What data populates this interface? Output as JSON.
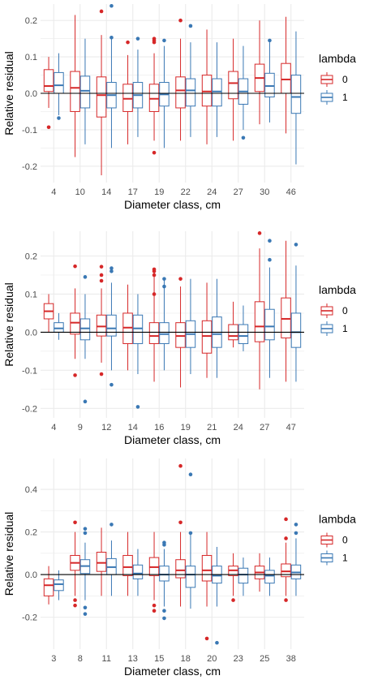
{
  "colors": {
    "lambda_0": "#d62728",
    "lambda_1": "#3a78b4",
    "grid": "#ebebeb",
    "zero_line": "#000000"
  },
  "legend": {
    "title": "lambda",
    "labels": [
      "0",
      "1"
    ]
  },
  "chart_data": [
    {
      "type": "box",
      "xlabel": "Diameter class, cm",
      "ylabel": "Relative residual",
      "ylim": [
        -0.245,
        0.245
      ],
      "yticks": [
        -0.2,
        -0.1,
        0.0,
        0.1,
        0.2
      ],
      "ytick_labels": [
        "-0.2",
        "-0.1",
        "0.0",
        "0.1",
        "0.2"
      ],
      "categories": [
        "4",
        "10",
        "14",
        "17",
        "19",
        "22",
        "24",
        "27",
        "30",
        "46"
      ],
      "series": [
        {
          "lambda": "0",
          "boxes": [
            {
              "whislo": -0.04,
              "q1": 0.005,
              "med": 0.02,
              "q3": 0.065,
              "whishi": 0.1,
              "fliers": [
                -0.093
              ]
            },
            {
              "whislo": -0.175,
              "q1": -0.05,
              "med": 0.015,
              "q3": 0.06,
              "whishi": 0.215,
              "fliers": []
            },
            {
              "whislo": -0.225,
              "q1": -0.065,
              "med": -0.005,
              "q3": 0.045,
              "whishi": 0.16,
              "fliers": [
                0.225
              ]
            },
            {
              "whislo": -0.14,
              "q1": -0.05,
              "med": -0.015,
              "q3": 0.025,
              "whishi": 0.105,
              "fliers": [
                0.14
              ]
            },
            {
              "whislo": -0.13,
              "q1": -0.05,
              "med": -0.015,
              "q3": 0.025,
              "whishi": 0.11,
              "fliers": [
                -0.163,
                0.14,
                0.145,
                0.15
              ]
            },
            {
              "whislo": -0.13,
              "q1": -0.04,
              "med": 0.008,
              "q3": 0.045,
              "whishi": 0.15,
              "fliers": [
                0.2
              ]
            },
            {
              "whislo": -0.14,
              "q1": -0.035,
              "med": 0.005,
              "q3": 0.05,
              "whishi": 0.175,
              "fliers": []
            },
            {
              "whislo": -0.13,
              "q1": -0.015,
              "med": 0.028,
              "q3": 0.06,
              "whishi": 0.15,
              "fliers": []
            },
            {
              "whislo": -0.085,
              "q1": 0.005,
              "med": 0.042,
              "q3": 0.08,
              "whishi": 0.2,
              "fliers": []
            },
            {
              "whislo": -0.11,
              "q1": 0.0,
              "med": 0.038,
              "q3": 0.082,
              "whishi": 0.21,
              "fliers": []
            }
          ]
        },
        {
          "lambda": "1",
          "boxes": [
            {
              "whislo": -0.06,
              "q1": 0.0,
              "med": 0.022,
              "q3": 0.057,
              "whishi": 0.11,
              "fliers": [
                -0.068
              ]
            },
            {
              "whislo": -0.14,
              "q1": -0.04,
              "med": 0.007,
              "q3": 0.047,
              "whishi": 0.15,
              "fliers": []
            },
            {
              "whislo": -0.15,
              "q1": -0.04,
              "med": -0.005,
              "q3": 0.03,
              "whishi": 0.15,
              "fliers": [
                0.153,
                0.24
              ]
            },
            {
              "whislo": -0.12,
              "q1": -0.04,
              "med": -0.005,
              "q3": 0.03,
              "whishi": 0.12,
              "fliers": [
                0.15
              ]
            },
            {
              "whislo": -0.15,
              "q1": -0.035,
              "med": -0.003,
              "q3": 0.03,
              "whishi": 0.13,
              "fliers": [
                0.145
              ]
            },
            {
              "whislo": -0.12,
              "q1": -0.035,
              "med": 0.008,
              "q3": 0.04,
              "whishi": 0.14,
              "fliers": [
                0.185
              ]
            },
            {
              "whislo": -0.12,
              "q1": -0.035,
              "med": 0.005,
              "q3": 0.04,
              "whishi": 0.14,
              "fliers": []
            },
            {
              "whislo": -0.1,
              "q1": -0.03,
              "med": 0.005,
              "q3": 0.04,
              "whishi": 0.13,
              "fliers": [
                -0.122
              ]
            },
            {
              "whislo": -0.08,
              "q1": -0.01,
              "med": 0.02,
              "q3": 0.055,
              "whishi": 0.14,
              "fliers": [
                0.145
              ]
            },
            {
              "whislo": -0.195,
              "q1": -0.055,
              "med": -0.01,
              "q3": 0.05,
              "whishi": 0.17,
              "fliers": []
            }
          ]
        }
      ]
    },
    {
      "type": "box",
      "xlabel": "Diameter class, cm",
      "ylabel": "Relative residual",
      "ylim": [
        -0.225,
        0.265
      ],
      "yticks": [
        -0.2,
        -0.1,
        0.0,
        0.1,
        0.2
      ],
      "ytick_labels": [
        "-0.2",
        "-0.1",
        "0.0",
        "0.1",
        "0.2"
      ],
      "categories": [
        "4",
        "9",
        "12",
        "14",
        "16",
        "19",
        "21",
        "24",
        "27",
        "47"
      ],
      "series": [
        {
          "lambda": "0",
          "boxes": [
            {
              "whislo": 0.0,
              "q1": 0.035,
              "med": 0.055,
              "q3": 0.075,
              "whishi": 0.1,
              "fliers": []
            },
            {
              "whislo": -0.07,
              "q1": -0.005,
              "med": 0.025,
              "q3": 0.05,
              "whishi": 0.115,
              "fliers": [
                -0.113,
                0.173
              ]
            },
            {
              "whislo": -0.08,
              "q1": -0.01,
              "med": 0.015,
              "q3": 0.045,
              "whishi": 0.115,
              "fliers": [
                -0.11,
                0.135,
                0.15,
                0.172
              ]
            },
            {
              "whislo": -0.1,
              "q1": -0.03,
              "med": 0.012,
              "q3": 0.05,
              "whishi": 0.125,
              "fliers": []
            },
            {
              "whislo": -0.13,
              "q1": -0.03,
              "med": -0.01,
              "q3": 0.025,
              "whishi": 0.16,
              "fliers": [
                0.1,
                0.15,
                0.16,
                0.165
              ]
            },
            {
              "whislo": -0.145,
              "q1": -0.04,
              "med": -0.01,
              "q3": 0.025,
              "whishi": 0.12,
              "fliers": [
                0.14
              ]
            },
            {
              "whislo": -0.12,
              "q1": -0.055,
              "med": -0.01,
              "q3": 0.03,
              "whishi": 0.13,
              "fliers": []
            },
            {
              "whislo": -0.04,
              "q1": -0.02,
              "med": -0.01,
              "q3": 0.02,
              "whishi": 0.08,
              "fliers": []
            },
            {
              "whislo": -0.15,
              "q1": -0.025,
              "med": 0.015,
              "q3": 0.08,
              "whishi": 0.22,
              "fliers": [
                0.26
              ]
            },
            {
              "whislo": -0.13,
              "q1": -0.015,
              "med": 0.035,
              "q3": 0.09,
              "whishi": 0.24,
              "fliers": []
            }
          ]
        },
        {
          "lambda": "1",
          "boxes": [
            {
              "whislo": -0.02,
              "q1": 0.0,
              "med": 0.01,
              "q3": 0.025,
              "whishi": 0.05,
              "fliers": []
            },
            {
              "whislo": -0.07,
              "q1": -0.02,
              "med": 0.01,
              "q3": 0.035,
              "whishi": 0.1,
              "fliers": [
                -0.182,
                0.145
              ]
            },
            {
              "whislo": -0.1,
              "q1": -0.01,
              "med": 0.01,
              "q3": 0.045,
              "whishi": 0.13,
              "fliers": [
                -0.138,
                0.16,
                0.168
              ]
            },
            {
              "whislo": -0.11,
              "q1": -0.03,
              "med": 0.01,
              "q3": 0.045,
              "whishi": 0.1,
              "fliers": [
                -0.196
              ]
            },
            {
              "whislo": -0.1,
              "q1": -0.03,
              "med": -0.005,
              "q3": 0.025,
              "whishi": 0.14,
              "fliers": [
                0.12,
                0.14
              ]
            },
            {
              "whislo": -0.11,
              "q1": -0.04,
              "med": -0.005,
              "q3": 0.03,
              "whishi": 0.14,
              "fliers": []
            },
            {
              "whislo": -0.12,
              "q1": -0.04,
              "med": -0.005,
              "q3": 0.04,
              "whishi": 0.14,
              "fliers": []
            },
            {
              "whislo": -0.05,
              "q1": -0.03,
              "med": -0.01,
              "q3": 0.02,
              "whishi": 0.07,
              "fliers": []
            },
            {
              "whislo": -0.12,
              "q1": -0.02,
              "med": 0.015,
              "q3": 0.06,
              "whishi": 0.17,
              "fliers": [
                0.19,
                0.24
              ]
            },
            {
              "whislo": -0.13,
              "q1": -0.04,
              "med": 0.0,
              "q3": 0.05,
              "whishi": 0.175,
              "fliers": [
                0.23
              ]
            }
          ]
        }
      ]
    },
    {
      "type": "box",
      "xlabel": "Diameter class, cm",
      "ylabel": "Relative residual",
      "ylim": [
        -0.35,
        0.545
      ],
      "yticks": [
        -0.2,
        0.0,
        0.2,
        0.4
      ],
      "ytick_labels": [
        "-0.2",
        "0.0",
        "0.2",
        "0.4"
      ],
      "categories": [
        "3",
        "8",
        "11",
        "13",
        "15",
        "18",
        "20",
        "23",
        "25",
        "38"
      ],
      "series": [
        {
          "lambda": "0",
          "boxes": [
            {
              "whislo": -0.14,
              "q1": -0.1,
              "med": -0.05,
              "q3": -0.02,
              "whishi": 0.04,
              "fliers": []
            },
            {
              "whislo": -0.1,
              "q1": 0.02,
              "med": 0.055,
              "q3": 0.09,
              "whishi": 0.2,
              "fliers": [
                -0.12,
                -0.145,
                0.245
              ]
            },
            {
              "whislo": -0.1,
              "q1": 0.015,
              "med": 0.055,
              "q3": 0.105,
              "whishi": 0.22,
              "fliers": []
            },
            {
              "whislo": -0.1,
              "q1": -0.005,
              "med": 0.035,
              "q3": 0.09,
              "whishi": 0.2,
              "fliers": []
            },
            {
              "whislo": -0.12,
              "q1": -0.005,
              "med": 0.035,
              "q3": 0.08,
              "whishi": 0.2,
              "fliers": [
                -0.145,
                -0.17
              ]
            },
            {
              "whislo": -0.15,
              "q1": -0.015,
              "med": 0.02,
              "q3": 0.07,
              "whishi": 0.2,
              "fliers": [
                0.245,
                0.51
              ]
            },
            {
              "whislo": -0.15,
              "q1": -0.03,
              "med": 0.02,
              "q3": 0.09,
              "whishi": 0.2,
              "fliers": [
                -0.3
              ]
            },
            {
              "whislo": -0.1,
              "q1": -0.005,
              "med": 0.02,
              "q3": 0.04,
              "whishi": 0.1,
              "fliers": [
                -0.12
              ]
            },
            {
              "whislo": -0.08,
              "q1": -0.02,
              "med": 0.01,
              "q3": 0.04,
              "whishi": 0.1,
              "fliers": []
            },
            {
              "whislo": -0.1,
              "q1": -0.01,
              "med": 0.015,
              "q3": 0.05,
              "whishi": 0.15,
              "fliers": [
                -0.12,
                0.17,
                0.26
              ]
            }
          ]
        },
        {
          "lambda": "1",
          "boxes": [
            {
              "whislo": -0.12,
              "q1": -0.075,
              "med": -0.045,
              "q3": -0.025,
              "whishi": 0.02,
              "fliers": []
            },
            {
              "whislo": -0.12,
              "q1": 0.005,
              "med": 0.04,
              "q3": 0.07,
              "whishi": 0.15,
              "fliers": [
                -0.155,
                -0.185,
                0.195,
                0.215
              ]
            },
            {
              "whislo": -0.1,
              "q1": 0.0,
              "med": 0.035,
              "q3": 0.075,
              "whishi": 0.16,
              "fliers": [
                0.235
              ]
            },
            {
              "whislo": -0.1,
              "q1": -0.02,
              "med": 0.005,
              "q3": 0.045,
              "whishi": 0.12,
              "fliers": []
            },
            {
              "whislo": -0.15,
              "q1": -0.03,
              "med": 0.0,
              "q3": 0.04,
              "whishi": 0.12,
              "fliers": [
                -0.17,
                -0.205,
                0.14,
                0.15
              ]
            },
            {
              "whislo": -0.16,
              "q1": -0.06,
              "med": 0.0,
              "q3": 0.04,
              "whishi": 0.2,
              "fliers": [
                0.195,
                0.47
              ]
            },
            {
              "whislo": -0.15,
              "q1": -0.04,
              "med": -0.005,
              "q3": 0.04,
              "whishi": 0.13,
              "fliers": [
                -0.32
              ]
            },
            {
              "whislo": -0.1,
              "q1": -0.04,
              "med": 0.0,
              "q3": 0.03,
              "whishi": 0.08,
              "fliers": []
            },
            {
              "whislo": -0.1,
              "q1": -0.04,
              "med": -0.005,
              "q3": 0.02,
              "whishi": 0.08,
              "fliers": []
            },
            {
              "whislo": -0.1,
              "q1": -0.02,
              "med": 0.01,
              "q3": 0.045,
              "whishi": 0.17,
              "fliers": [
                0.195,
                0.235
              ]
            }
          ]
        }
      ]
    }
  ]
}
